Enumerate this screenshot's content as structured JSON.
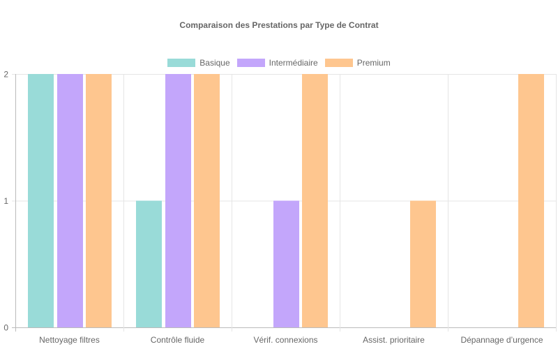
{
  "chart_data": {
    "type": "bar",
    "title": "Comparaison des Prestations par Type de Contrat",
    "categories": [
      "Nettoyage filtres",
      "Contrôle fluide",
      "Vérif. connexions",
      "Assist. prioritaire",
      "Dépannage d’urgence"
    ],
    "series": [
      {
        "name": "Basique",
        "values": [
          2,
          1,
          0,
          0,
          0
        ],
        "color": "#99dbd8"
      },
      {
        "name": "Intermédiaire",
        "values": [
          2,
          2,
          1,
          0,
          0
        ],
        "color": "#c3a6fb"
      },
      {
        "name": "Premium",
        "values": [
          2,
          2,
          2,
          1,
          2
        ],
        "color": "#fec68f"
      }
    ],
    "ylim": [
      0,
      2
    ],
    "yticks": [
      "0",
      "1",
      "2"
    ],
    "xlabel": "",
    "ylabel": "",
    "grid": true,
    "legend": "top-center"
  }
}
